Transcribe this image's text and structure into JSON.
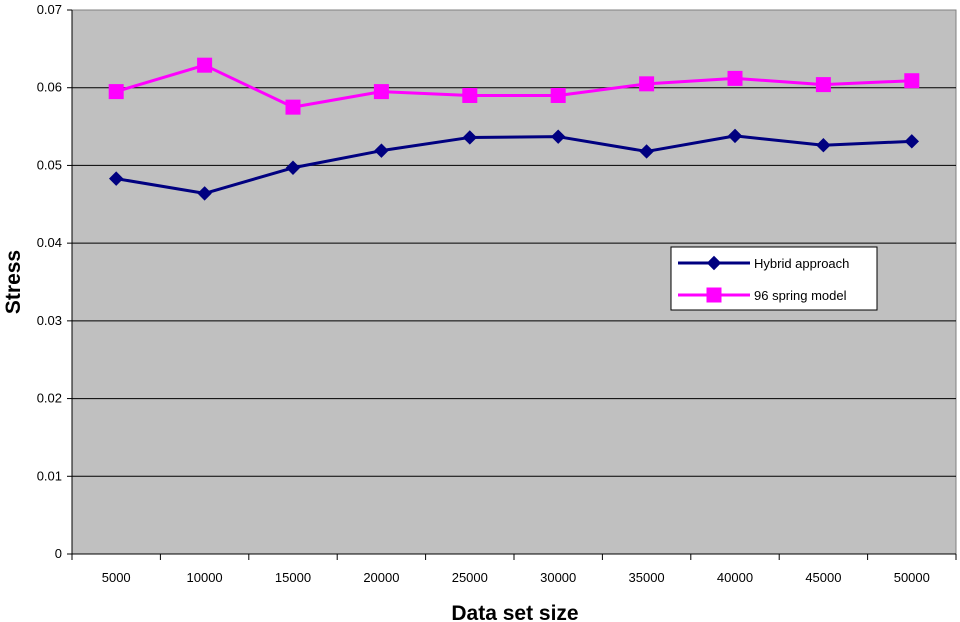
{
  "chart_data": {
    "type": "line",
    "title": "",
    "xlabel": "Data set size",
    "ylabel": "Stress",
    "categories": [
      "5000",
      "10000",
      "15000",
      "20000",
      "25000",
      "30000",
      "35000",
      "40000",
      "45000",
      "50000"
    ],
    "y_ticks": [
      "0",
      "0.01",
      "0.02",
      "0.03",
      "0.04",
      "0.05",
      "0.06",
      "0.07"
    ],
    "ylim": [
      0,
      0.07
    ],
    "grid": "horizontal",
    "plot_background": "#c0c0c0",
    "legend_placement": "right",
    "series": [
      {
        "name": "Hybrid approach",
        "color": "#000080",
        "marker": "diamond",
        "values": [
          0.0483,
          0.0464,
          0.0497,
          0.0519,
          0.0536,
          0.0537,
          0.0518,
          0.0538,
          0.0526,
          0.0531
        ]
      },
      {
        "name": "96 spring model",
        "color": "#ff00ff",
        "marker": "square",
        "values": [
          0.0595,
          0.0629,
          0.0575,
          0.0595,
          0.059,
          0.059,
          0.0605,
          0.0612,
          0.0604,
          0.0609
        ]
      }
    ]
  }
}
